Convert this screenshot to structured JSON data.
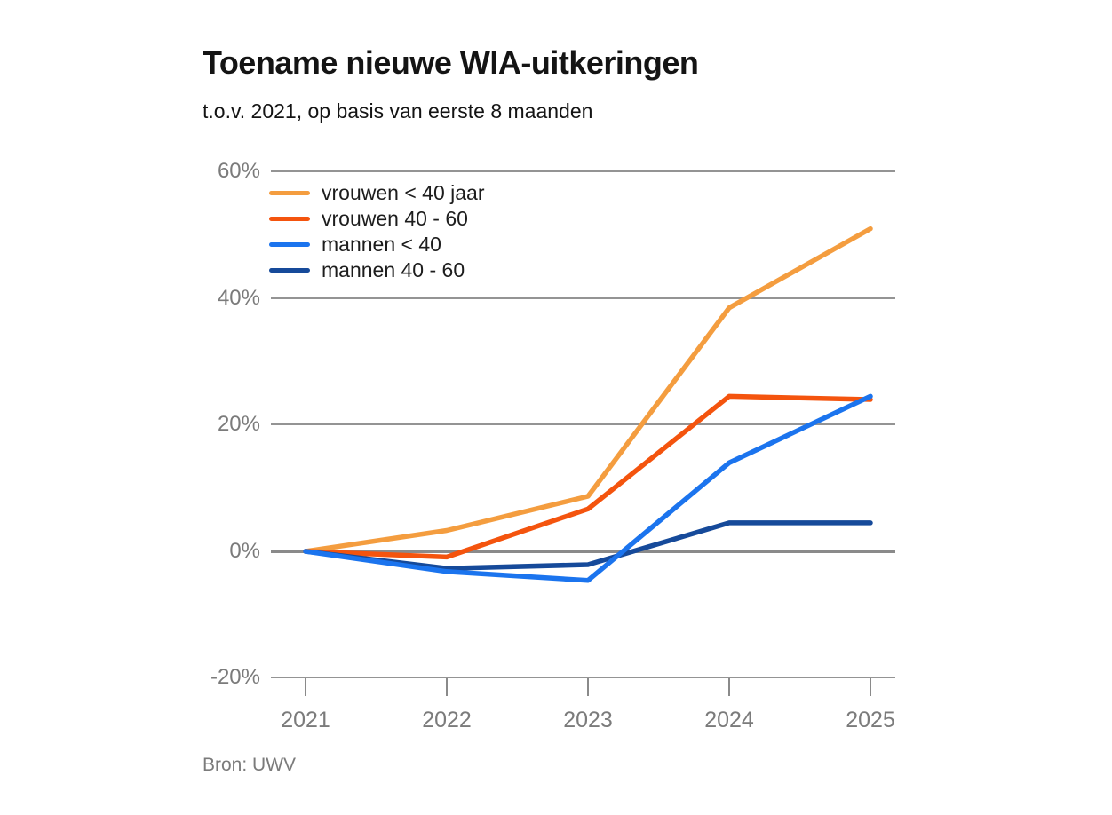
{
  "header": {
    "title": "Toename nieuwe WIA-uitkeringen",
    "subtitle": "t.o.v. 2021, op basis van eerste 8 maanden"
  },
  "footer": {
    "source": "Bron: UWV"
  },
  "colors": {
    "grid": "#949494",
    "zero_line": "#8a8a8a",
    "axis_text": "#7b7b7b",
    "title_text": "#141414"
  },
  "chart_data": {
    "type": "line",
    "title": "Toename nieuwe WIA-uitkeringen",
    "subtitle": "t.o.v. 2021, op basis van eerste 8 maanden",
    "source": "Bron: UWV",
    "xlabel": "",
    "ylabel": "",
    "unit": "%",
    "x": [
      2021,
      2022,
      2023,
      2024,
      2025
    ],
    "x_tick_labels": [
      "2021",
      "2022",
      "2023",
      "2024",
      "2025"
    ],
    "y_ticks": [
      60,
      40,
      20,
      0,
      -20
    ],
    "y_tick_labels": [
      "60%",
      "40%",
      "20%",
      "0%",
      "-20%"
    ],
    "ylim": [
      -20,
      60
    ],
    "grid": "horizontal",
    "zero_line": true,
    "legend_position": "top-left-inside",
    "series": [
      {
        "name": "vrouwen < 40 jaar",
        "key": "vrouwen-lt-40",
        "color": "#F49D3F",
        "values": [
          0,
          3.3,
          8.7,
          38.5,
          51
        ]
      },
      {
        "name": "vrouwen 40 - 60",
        "key": "vrouwen-40-60",
        "color": "#F4540E",
        "values": [
          0,
          -0.9,
          6.7,
          24.5,
          24
        ]
      },
      {
        "name": "mannen < 40",
        "key": "mannen-lt-40",
        "color": "#1B74EE",
        "values": [
          0,
          -3.2,
          -4.6,
          14,
          24.5
        ]
      },
      {
        "name": "mannen 40 - 60",
        "key": "mannen-40-60",
        "color": "#164A9A",
        "values": [
          0,
          -2.7,
          -2.1,
          4.5,
          4.5
        ]
      }
    ]
  }
}
